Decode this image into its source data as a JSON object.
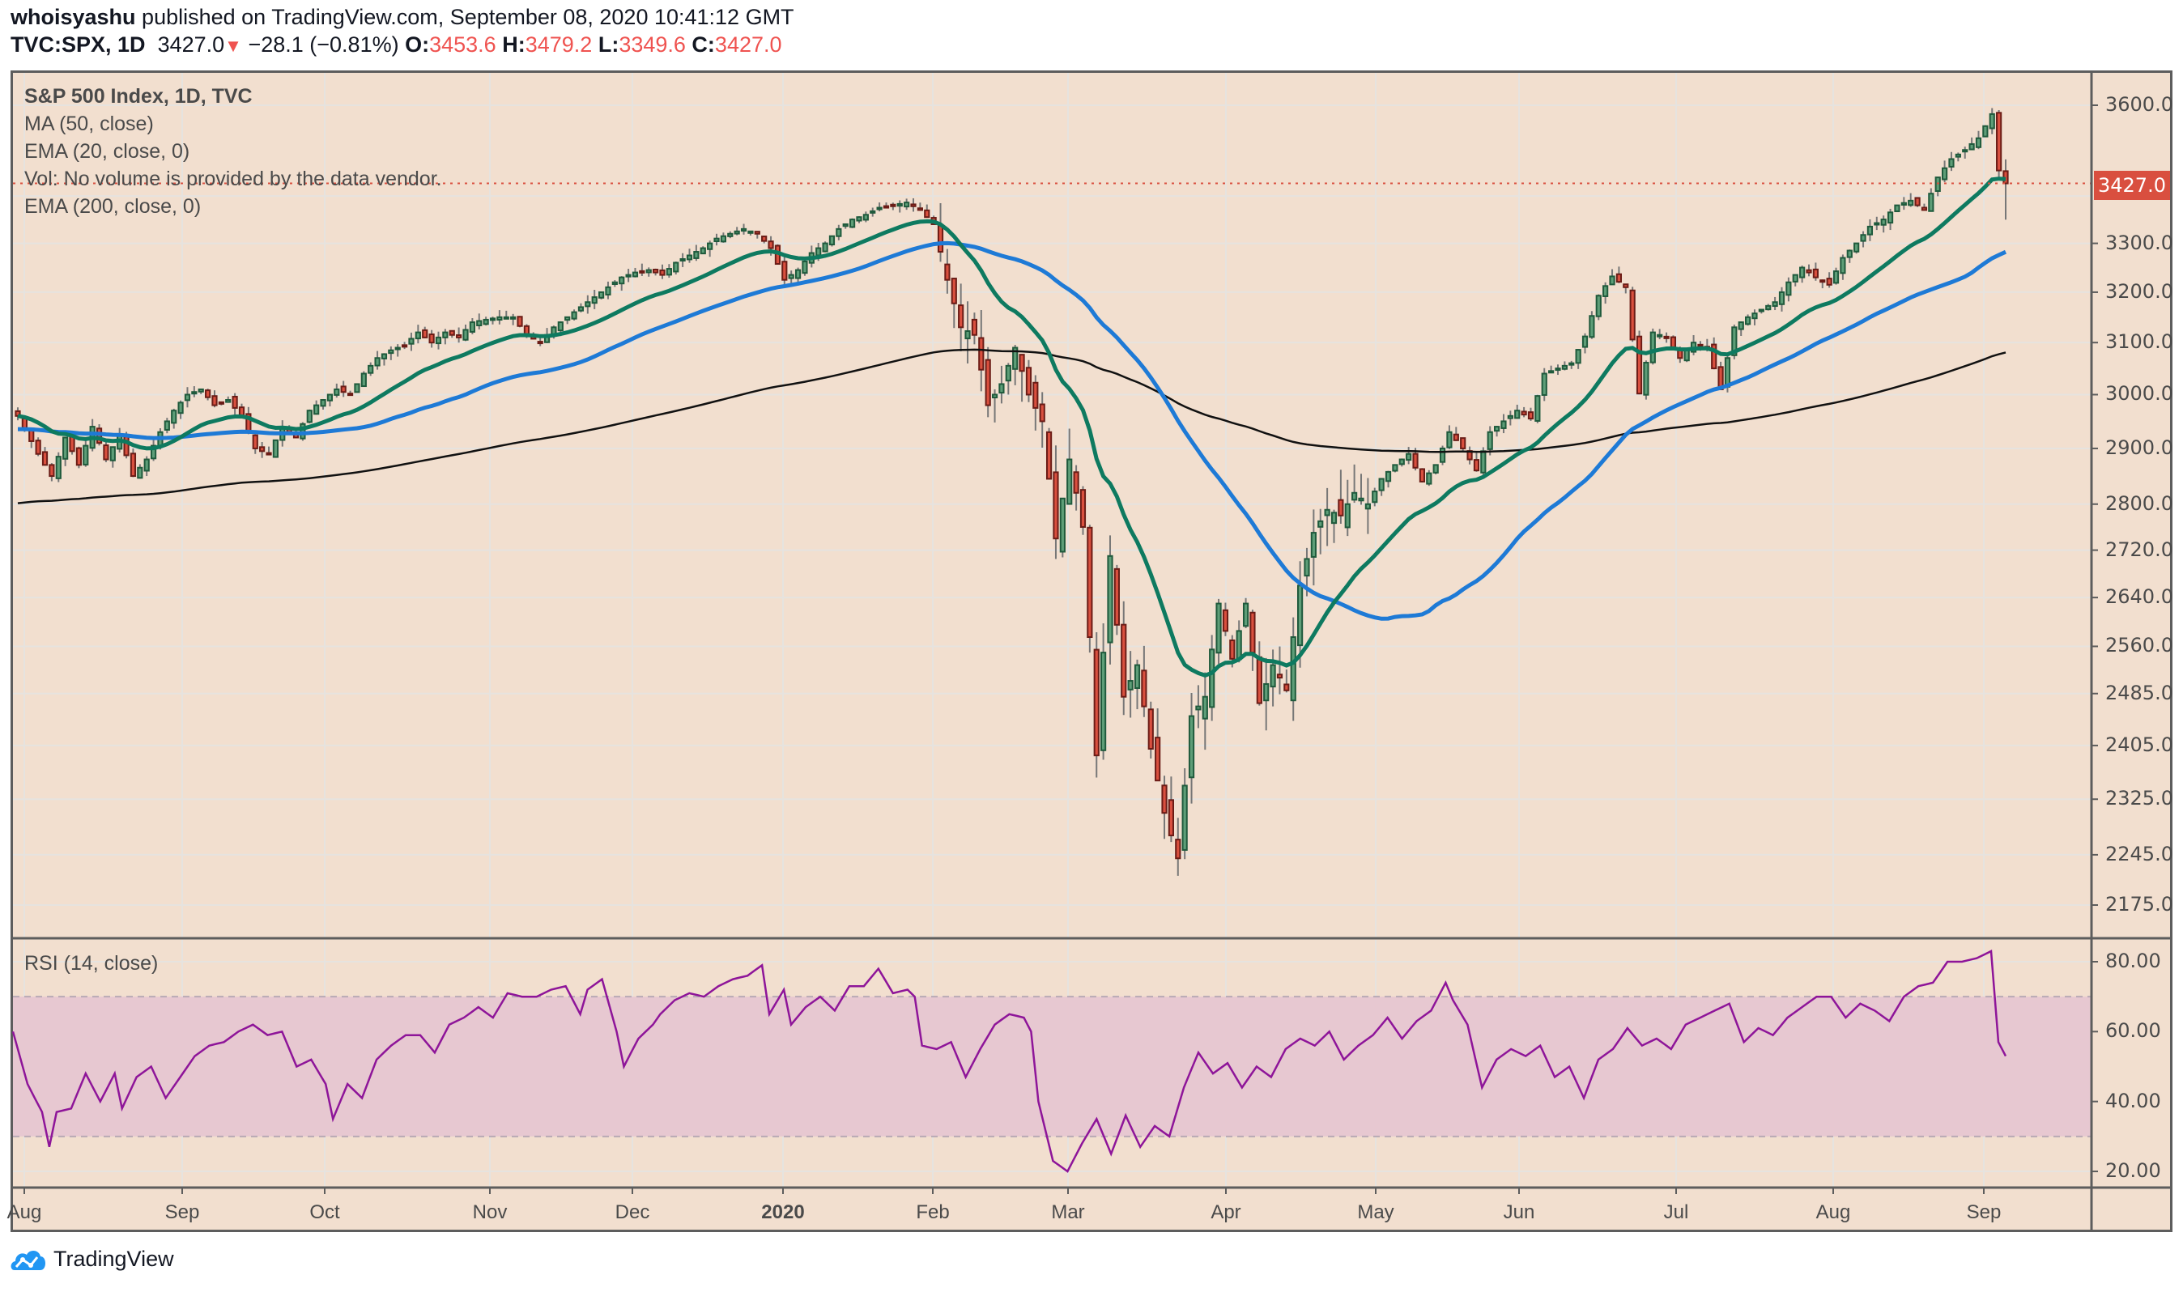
{
  "header": {
    "author": "whoisyashu",
    "published_text": " published on TradingView.com, September 08, 2020 10:41:12 GMT",
    "symbol": "TVC:SPX, 1D",
    "last": "3427.0",
    "change": "−28.1 (−0.81%)",
    "o_label": "O:",
    "o": "3453.6",
    "h_label": "H:",
    "h": "3479.2",
    "l_label": "L:",
    "l": "3349.6",
    "c_label": "C:",
    "c": "3427.0",
    "direction_icon": "triangle-down-icon"
  },
  "legend": {
    "title": "S&P 500 Index, 1D, TVC",
    "ma50": "MA (50, close)",
    "ema20": "EMA (20, close, 0)",
    "vol": "Vol: No volume is provided by the data vendor.",
    "ema200": "EMA (200, close, 0)",
    "rsi": "RSI (14, close)"
  },
  "price_axis": {
    "last_price_label": "3427.0",
    "ticks": [
      "3600.0",
      "3300.0",
      "3200.0",
      "3100.0",
      "3000.0",
      "2900.0",
      "2800.0",
      "2720.0",
      "2640.0",
      "2560.0",
      "2485.0",
      "2405.0",
      "2325.0",
      "2245.0",
      "2175.0"
    ]
  },
  "rsi_axis": {
    "ticks": [
      "80.00",
      "60.00",
      "40.00",
      "20.00"
    ]
  },
  "time_axis": {
    "labels": [
      "Aug",
      "Sep",
      "Oct",
      "Nov",
      "Dec",
      "2020",
      "Feb",
      "Mar",
      "Apr",
      "May",
      "Jun",
      "Jul",
      "Aug",
      "Sep"
    ]
  },
  "brand": {
    "name": "TradingView",
    "icon": "tradingview-cloud-icon"
  },
  "colors": {
    "background": "#f2dfcf",
    "up_fill": "#5e9e78",
    "up_border": "#1f5a3c",
    "down_fill": "#d9503f",
    "down_border": "#6b1c16",
    "wick": "#777777",
    "ema20": "#0e7a60",
    "ma50": "#1e7ad6",
    "ema200": "#111111",
    "rsi_line": "#8e1599",
    "rsi_band": "#e7c8d1",
    "last_price": "#d94f3f",
    "grid": "#e6e3df"
  },
  "chart_data": {
    "type": "candlestick",
    "title": "S&P 500 Index, 1D, TVC",
    "scale": "log",
    "ylim": [
      2140,
      3700
    ],
    "x_range": [
      "2019-08-01",
      "2020-09-08"
    ],
    "last": {
      "open": 3453.6,
      "high": 3479.2,
      "low": 3349.6,
      "close": 3427.0,
      "change": -28.1,
      "change_pct": -0.81
    },
    "indicators": [
      "MA 50",
      "EMA 20",
      "EMA 200",
      "RSI 14"
    ],
    "rsi_band": [
      30,
      70
    ],
    "close_keypoints": [
      [
        0,
        2960
      ],
      [
        3,
        2890
      ],
      [
        5,
        2850
      ],
      [
        7,
        2920
      ],
      [
        9,
        2870
      ],
      [
        11,
        2940
      ],
      [
        13,
        2880
      ],
      [
        15,
        2925
      ],
      [
        17,
        2850
      ],
      [
        19,
        2880
      ],
      [
        21,
        2930
      ],
      [
        23,
        2970
      ],
      [
        25,
        3000
      ],
      [
        27,
        3010
      ],
      [
        29,
        2980
      ],
      [
        31,
        2990
      ],
      [
        33,
        2960
      ],
      [
        35,
        2900
      ],
      [
        37,
        2890
      ],
      [
        39,
        2940
      ],
      [
        41,
        2920
      ],
      [
        43,
        2970
      ],
      [
        45,
        2990
      ],
      [
        47,
        3010
      ],
      [
        49,
        3000
      ],
      [
        51,
        3040
      ],
      [
        53,
        3070
      ],
      [
        55,
        3085
      ],
      [
        57,
        3095
      ],
      [
        59,
        3120
      ],
      [
        61,
        3100
      ],
      [
        63,
        3120
      ],
      [
        65,
        3110
      ],
      [
        67,
        3140
      ],
      [
        69,
        3145
      ],
      [
        71,
        3150
      ],
      [
        73,
        3150
      ],
      [
        75,
        3115
      ],
      [
        77,
        3100
      ],
      [
        79,
        3130
      ],
      [
        81,
        3150
      ],
      [
        83,
        3170
      ],
      [
        85,
        3190
      ],
      [
        87,
        3210
      ],
      [
        89,
        3230
      ],
      [
        91,
        3240
      ],
      [
        93,
        3245
      ],
      [
        95,
        3235
      ],
      [
        97,
        3260
      ],
      [
        99,
        3275
      ],
      [
        101,
        3290
      ],
      [
        103,
        3310
      ],
      [
        105,
        3320
      ],
      [
        107,
        3330
      ],
      [
        109,
        3320
      ],
      [
        111,
        3290
      ],
      [
        113,
        3225
      ],
      [
        115,
        3245
      ],
      [
        117,
        3280
      ],
      [
        119,
        3300
      ],
      [
        121,
        3330
      ],
      [
        123,
        3350
      ],
      [
        125,
        3360
      ],
      [
        127,
        3375
      ],
      [
        129,
        3380
      ],
      [
        131,
        3386
      ],
      [
        133,
        3370
      ],
      [
        135,
        3340
      ],
      [
        137,
        3225
      ],
      [
        139,
        3130
      ],
      [
        141,
        3115
      ],
      [
        143,
        2980
      ],
      [
        145,
        3020
      ],
      [
        147,
        3090
      ],
      [
        149,
        3000
      ],
      [
        151,
        2950
      ],
      [
        153,
        2740
      ],
      [
        155,
        2880
      ],
      [
        157,
        2760
      ],
      [
        159,
        2390
      ],
      [
        161,
        2710
      ],
      [
        163,
        2480
      ],
      [
        165,
        2530
      ],
      [
        167,
        2400
      ],
      [
        169,
        2305
      ],
      [
        171,
        2240
      ],
      [
        173,
        2450
      ],
      [
        175,
        2480
      ],
      [
        177,
        2630
      ],
      [
        179,
        2540
      ],
      [
        181,
        2630
      ],
      [
        183,
        2470
      ],
      [
        185,
        2530
      ],
      [
        187,
        2490
      ],
      [
        189,
        2660
      ],
      [
        191,
        2750
      ],
      [
        193,
        2790
      ],
      [
        195,
        2780
      ],
      [
        197,
        2820
      ],
      [
        199,
        2800
      ],
      [
        201,
        2845
      ],
      [
        203,
        2870
      ],
      [
        205,
        2890
      ],
      [
        207,
        2840
      ],
      [
        209,
        2870
      ],
      [
        211,
        2930
      ],
      [
        213,
        2900
      ],
      [
        215,
        2860
      ],
      [
        217,
        2930
      ],
      [
        219,
        2950
      ],
      [
        221,
        2970
      ],
      [
        223,
        2955
      ],
      [
        225,
        3040
      ],
      [
        227,
        3050
      ],
      [
        229,
        3060
      ],
      [
        231,
        3112
      ],
      [
        233,
        3193
      ],
      [
        235,
        3232
      ],
      [
        237,
        3210
      ],
      [
        239,
        3002
      ],
      [
        241,
        3120
      ],
      [
        243,
        3110
      ],
      [
        245,
        3070
      ],
      [
        247,
        3100
      ],
      [
        249,
        3090
      ],
      [
        251,
        3010
      ],
      [
        253,
        3130
      ],
      [
        255,
        3150
      ],
      [
        257,
        3165
      ],
      [
        259,
        3180
      ],
      [
        261,
        3220
      ],
      [
        263,
        3250
      ],
      [
        265,
        3230
      ],
      [
        267,
        3215
      ],
      [
        269,
        3270
      ],
      [
        271,
        3300
      ],
      [
        273,
        3335
      ],
      [
        275,
        3350
      ],
      [
        277,
        3380
      ],
      [
        279,
        3390
      ],
      [
        281,
        3370
      ],
      [
        283,
        3440
      ],
      [
        285,
        3480
      ],
      [
        287,
        3500
      ],
      [
        289,
        3526
      ],
      [
        291,
        3580
      ],
      [
        292,
        3455
      ],
      [
        293,
        3427
      ]
    ],
    "rsi_keypoints": [
      [
        0,
        60
      ],
      [
        2,
        45
      ],
      [
        4,
        37
      ],
      [
        5,
        27
      ],
      [
        6,
        37
      ],
      [
        8,
        38
      ],
      [
        10,
        48
      ],
      [
        12,
        40
      ],
      [
        14,
        48
      ],
      [
        15,
        38
      ],
      [
        17,
        47
      ],
      [
        19,
        50
      ],
      [
        21,
        41
      ],
      [
        23,
        47
      ],
      [
        25,
        53
      ],
      [
        27,
        56
      ],
      [
        29,
        57
      ],
      [
        31,
        60
      ],
      [
        33,
        62
      ],
      [
        35,
        59
      ],
      [
        37,
        60
      ],
      [
        39,
        50
      ],
      [
        41,
        52
      ],
      [
        43,
        45
      ],
      [
        44,
        35
      ],
      [
        46,
        45
      ],
      [
        48,
        41
      ],
      [
        50,
        52
      ],
      [
        52,
        56
      ],
      [
        54,
        59
      ],
      [
        56,
        59
      ],
      [
        58,
        54
      ],
      [
        60,
        62
      ],
      [
        62,
        64
      ],
      [
        64,
        67
      ],
      [
        66,
        64
      ],
      [
        68,
        71
      ],
      [
        70,
        70
      ],
      [
        72,
        70
      ],
      [
        74,
        72
      ],
      [
        76,
        73
      ],
      [
        78,
        65
      ],
      [
        79,
        72
      ],
      [
        81,
        75
      ],
      [
        83,
        60
      ],
      [
        84,
        50
      ],
      [
        86,
        58
      ],
      [
        88,
        62
      ],
      [
        89,
        65
      ],
      [
        91,
        69
      ],
      [
        93,
        71
      ],
      [
        95,
        70
      ],
      [
        97,
        73
      ],
      [
        99,
        75
      ],
      [
        101,
        76
      ],
      [
        103,
        79
      ],
      [
        104,
        65
      ],
      [
        106,
        72
      ],
      [
        107,
        62
      ],
      [
        109,
        67
      ],
      [
        111,
        70
      ],
      [
        113,
        66
      ],
      [
        115,
        73
      ],
      [
        117,
        73
      ],
      [
        119,
        78
      ],
      [
        121,
        71
      ],
      [
        123,
        72
      ],
      [
        124,
        70
      ],
      [
        125,
        56
      ],
      [
        127,
        55
      ],
      [
        129,
        57
      ],
      [
        131,
        47
      ],
      [
        133,
        55
      ],
      [
        135,
        62
      ],
      [
        137,
        65
      ],
      [
        139,
        64
      ],
      [
        140,
        60
      ],
      [
        141,
        40
      ],
      [
        143,
        23
      ],
      [
        145,
        20
      ],
      [
        147,
        28
      ],
      [
        149,
        35
      ],
      [
        151,
        25
      ],
      [
        153,
        36
      ],
      [
        155,
        27
      ],
      [
        157,
        33
      ],
      [
        159,
        30
      ],
      [
        161,
        44
      ],
      [
        163,
        54
      ],
      [
        165,
        48
      ],
      [
        167,
        51
      ],
      [
        169,
        44
      ],
      [
        171,
        50
      ],
      [
        173,
        47
      ],
      [
        175,
        55
      ],
      [
        177,
        58
      ],
      [
        179,
        56
      ],
      [
        181,
        60
      ],
      [
        183,
        52
      ],
      [
        185,
        56
      ],
      [
        187,
        59
      ],
      [
        189,
        64
      ],
      [
        191,
        58
      ],
      [
        193,
        63
      ],
      [
        195,
        66
      ],
      [
        197,
        74
      ],
      [
        198,
        69
      ],
      [
        200,
        62
      ],
      [
        202,
        44
      ],
      [
        204,
        52
      ],
      [
        206,
        55
      ],
      [
        208,
        53
      ],
      [
        210,
        56
      ],
      [
        212,
        47
      ],
      [
        214,
        50
      ],
      [
        216,
        41
      ],
      [
        218,
        52
      ],
      [
        220,
        55
      ],
      [
        222,
        61
      ],
      [
        224,
        56
      ],
      [
        226,
        58
      ],
      [
        228,
        55
      ],
      [
        230,
        62
      ],
      [
        232,
        64
      ],
      [
        234,
        66
      ],
      [
        236,
        68
      ],
      [
        238,
        57
      ],
      [
        240,
        61
      ],
      [
        242,
        59
      ],
      [
        244,
        64
      ],
      [
        246,
        67
      ],
      [
        248,
        70
      ],
      [
        250,
        70
      ],
      [
        252,
        64
      ],
      [
        254,
        68
      ],
      [
        256,
        66
      ],
      [
        258,
        63
      ],
      [
        260,
        70
      ],
      [
        262,
        73
      ],
      [
        264,
        74
      ],
      [
        266,
        80
      ],
      [
        268,
        80
      ],
      [
        270,
        81
      ],
      [
        272,
        83
      ],
      [
        273,
        57
      ],
      [
        274,
        53
      ]
    ]
  }
}
